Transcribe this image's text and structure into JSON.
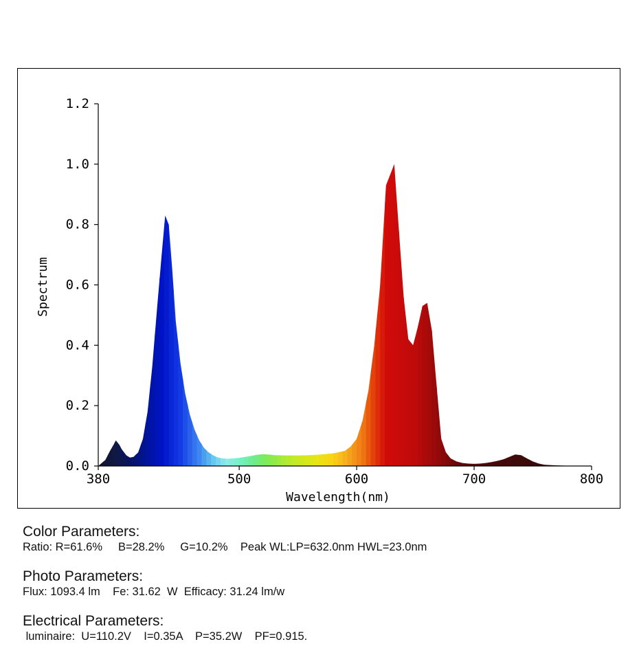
{
  "chart_data": {
    "type": "area",
    "xlabel": "Wavelength(nm)",
    "ylabel": "Spectrum",
    "xlim": [
      380,
      800
    ],
    "ylim": [
      0,
      1.2
    ],
    "x_ticks": [
      380,
      500,
      600,
      700,
      800
    ],
    "y_ticks": [
      "0.0",
      "0.2",
      "0.4",
      "0.6",
      "0.8",
      "1.0",
      "1.2"
    ],
    "fill": "wavelength-colored gradient",
    "grid": false,
    "legend": "none",
    "x": [
      380,
      383,
      386,
      390,
      393,
      395,
      398,
      400,
      404,
      407,
      410,
      414,
      418,
      422,
      426,
      430,
      434,
      437,
      440,
      443,
      446,
      450,
      454,
      458,
      462,
      466,
      470,
      474,
      478,
      482,
      486,
      490,
      495,
      500,
      505,
      510,
      515,
      520,
      525,
      530,
      540,
      550,
      560,
      570,
      580,
      590,
      595,
      600,
      605,
      610,
      615,
      620,
      625,
      628,
      632,
      636,
      640,
      644,
      648,
      652,
      656,
      660,
      664,
      668,
      672,
      676,
      680,
      685,
      690,
      695,
      700,
      705,
      710,
      715,
      720,
      725,
      730,
      735,
      740,
      745,
      750,
      755,
      760,
      770,
      780,
      790,
      800
    ],
    "y": [
      0.0,
      0.01,
      0.02,
      0.05,
      0.07,
      0.085,
      0.07,
      0.055,
      0.035,
      0.028,
      0.03,
      0.045,
      0.09,
      0.18,
      0.33,
      0.52,
      0.7,
      0.83,
      0.8,
      0.65,
      0.48,
      0.34,
      0.24,
      0.17,
      0.12,
      0.085,
      0.06,
      0.045,
      0.035,
      0.028,
      0.025,
      0.024,
      0.025,
      0.027,
      0.03,
      0.033,
      0.037,
      0.039,
      0.038,
      0.036,
      0.035,
      0.035,
      0.036,
      0.038,
      0.042,
      0.05,
      0.065,
      0.09,
      0.15,
      0.25,
      0.4,
      0.6,
      0.93,
      0.96,
      1.0,
      0.78,
      0.56,
      0.42,
      0.4,
      0.46,
      0.53,
      0.54,
      0.45,
      0.27,
      0.09,
      0.045,
      0.025,
      0.015,
      0.01,
      0.008,
      0.007,
      0.008,
      0.01,
      0.013,
      0.017,
      0.022,
      0.03,
      0.038,
      0.036,
      0.025,
      0.015,
      0.008,
      0.004,
      0.002,
      0.001,
      0.0,
      0.0
    ]
  },
  "colors": {
    "axis": "#000000",
    "background": "#ffffff"
  },
  "params": {
    "color": {
      "title": "Color Parameters:",
      "line": "Ratio: R=61.6%     B=28.2%     G=10.2%    Peak WL:LP=632.0nm HWL=23.0nm"
    },
    "photo": {
      "title": "Photo Parameters:",
      "line": "Flux: 1093.4 lm    Fe: 31.62  W  Efficacy: 31.24 lm/w"
    },
    "electrical": {
      "title": "Electrical Parameters:",
      "line": " luminaire:  U=110.2V    I=0.35A    P=35.2W    PF=0.915."
    }
  }
}
